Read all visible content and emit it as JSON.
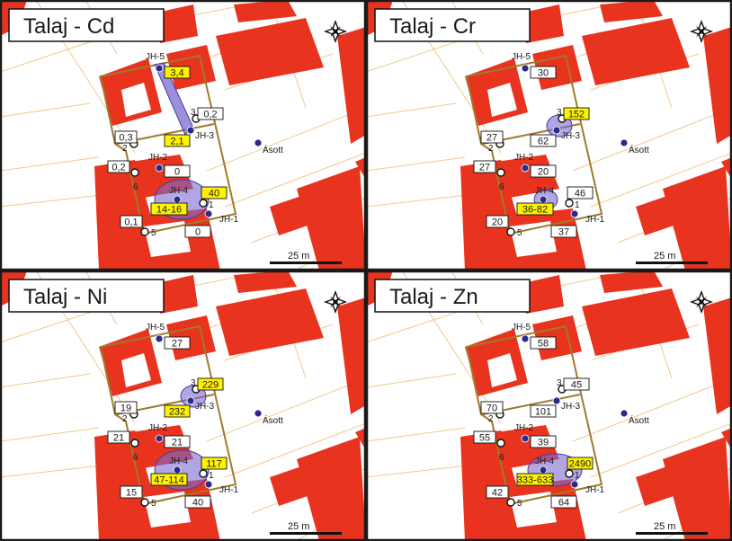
{
  "colors": {
    "building": "#e8331f",
    "boundary": "#a07a2a",
    "parcel": "#f2c98a",
    "point": "#2b2a8c",
    "highlight": "#fff200",
    "plume": "#7b6bd0",
    "frame": "#1a1a1a"
  },
  "icons": {
    "north_arrow": "compass-star-icon"
  },
  "scale_label": "25 m",
  "sample_labels": {
    "jh5": "JH-5",
    "jh3": "JH-3",
    "jh2": "JH-2",
    "jh4": "JH-4",
    "jh1": "JH-1",
    "asott": "Ásott",
    "n1": "1",
    "n2": "2",
    "n3": "3",
    "n5": "5",
    "n6": "6"
  },
  "panels": [
    {
      "title": "Talaj - Cd",
      "values": {
        "jh5": "3,4",
        "p3": "0,2",
        "jh3": "2,1",
        "left2": "0,3",
        "left6": "0,2",
        "jh2": "0",
        "v1": "40",
        "jh4": "14-16",
        "v5": "0,1",
        "jh1": "0"
      },
      "highlight": [
        "jh5",
        "jh3",
        "v1",
        "jh4"
      ]
    },
    {
      "title": "Talaj - Cr",
      "values": {
        "jh5": "30",
        "p3": "152",
        "jh3": "62",
        "left2": "27",
        "left6": "27",
        "jh2": "20",
        "v1": "46",
        "jh4": "36-82",
        "v5": "20",
        "jh1": "37"
      },
      "highlight": [
        "p3",
        "jh4"
      ]
    },
    {
      "title": "Talaj - Ni",
      "values": {
        "jh5": "27",
        "p3": "229",
        "jh3": "232",
        "left2": "19",
        "left6": "21",
        "jh2": "21",
        "v1": "117",
        "jh4": "47-114",
        "v5": "15",
        "jh1": "40"
      },
      "highlight": [
        "p3",
        "jh3",
        "v1",
        "jh4"
      ]
    },
    {
      "title": "Talaj - Zn",
      "values": {
        "jh5": "58",
        "p3": "45",
        "jh3": "101",
        "left2": "70",
        "left6": "55",
        "jh2": "39",
        "v1": "2490",
        "jh4": "333-633",
        "v5": "42",
        "jh1": "64"
      },
      "highlight": [
        "v1",
        "jh4"
      ]
    }
  ]
}
